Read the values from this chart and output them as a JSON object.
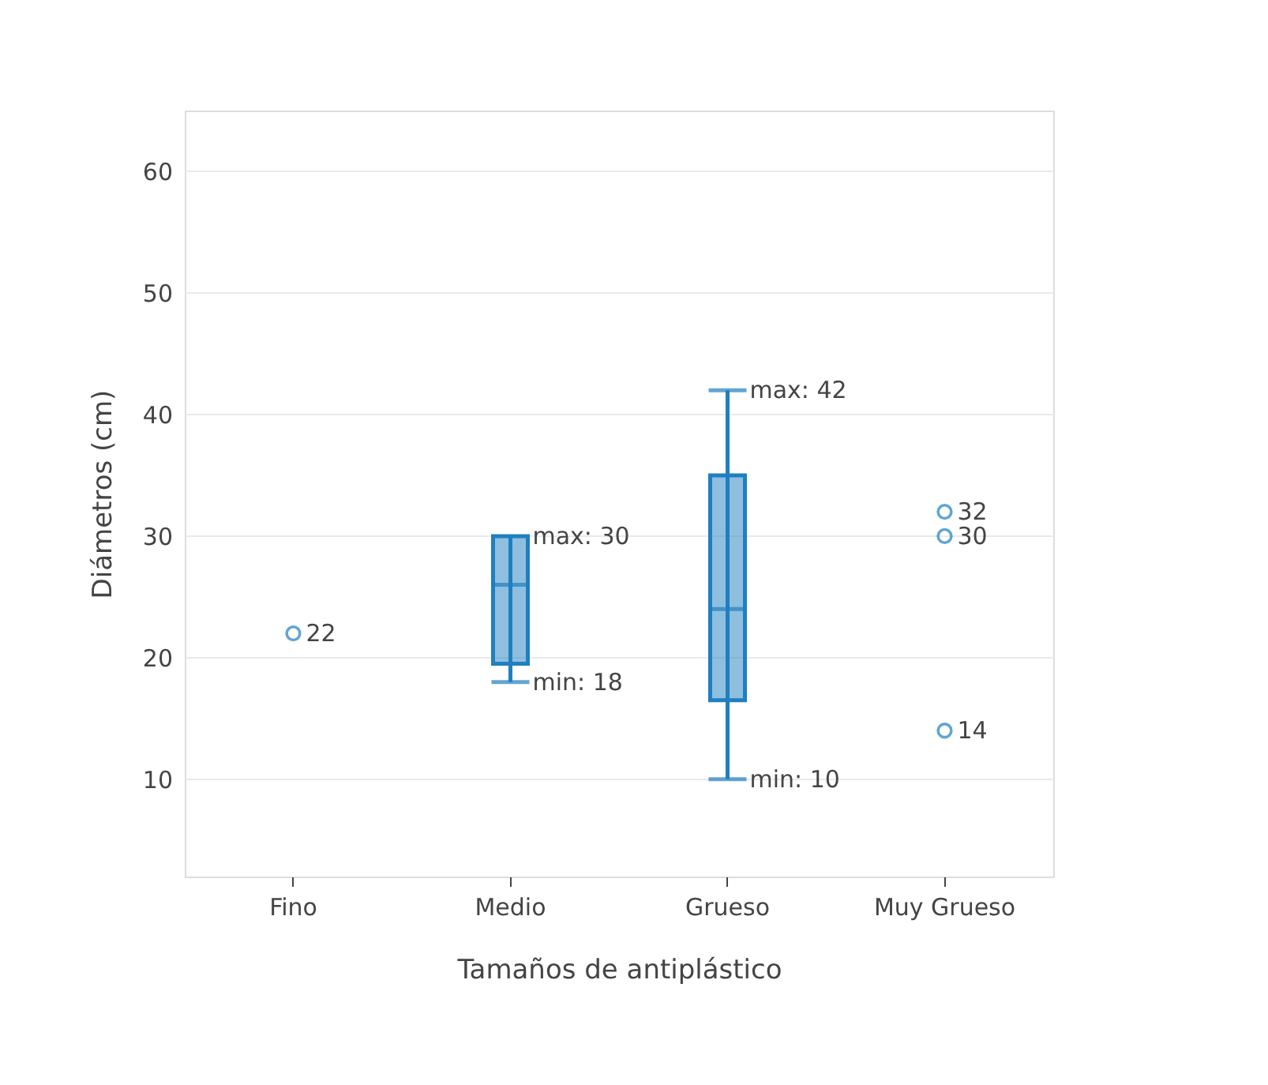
{
  "chart_data": {
    "type": "box",
    "xlabel": "Tamaños de antiplástico",
    "ylabel": "Diámetros (cm)",
    "categories": [
      "Fino",
      "Medio",
      "Grueso",
      "Muy Grueso"
    ],
    "ylim": [
      2,
      65
    ],
    "yticks": [
      10,
      20,
      30,
      40,
      50,
      60
    ],
    "grid": "y",
    "series": [
      {
        "color": "#1f7fc0",
        "boxes": [
          null,
          {
            "low": 18,
            "q1": 19.5,
            "median": 26,
            "q3": 30,
            "high": 30
          },
          {
            "low": 10,
            "q1": 16.5,
            "median": 24,
            "q3": 35,
            "high": 42
          },
          null
        ]
      },
      {
        "type": "scatter",
        "color": "#1f7fc0",
        "marker": "circle",
        "data_labels": true,
        "x": [
          "Fino",
          "Muy Grueso",
          "Muy Grueso",
          "Muy Grueso"
        ],
        "values": [
          22,
          32,
          30,
          14
        ]
      }
    ],
    "annotations": [
      {
        "text": "max: 30",
        "x": "Medio",
        "y": 30
      },
      {
        "text": "min: 18",
        "x": "Medio",
        "y": 18
      },
      {
        "text": "max: 42",
        "x": "Grueso",
        "y": 42
      },
      {
        "text": "min: 10",
        "x": "Grueso",
        "y": 10
      }
    ]
  }
}
